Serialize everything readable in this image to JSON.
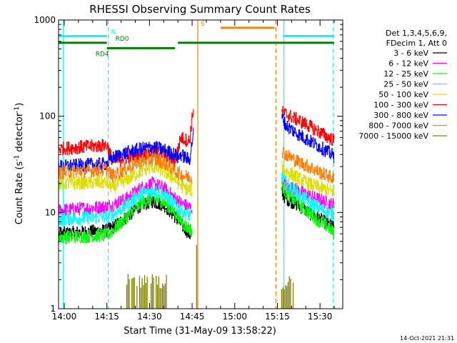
{
  "chart_data": {
    "type": "line",
    "title": "RHESSI Observing Summary Count Rates",
    "xlabel": "Start Time (31-May-09 13:58:22)",
    "ylabel_parts": [
      "Count Rate (s",
      "-1",
      " detector",
      "-1",
      ")"
    ],
    "x_unit": "minutes",
    "xlim": [
      -2,
      98
    ],
    "ylim": [
      1,
      1000
    ],
    "y_scale": "log",
    "x_ticks": [
      {
        "t": 0,
        "label": "14:00"
      },
      {
        "t": 15,
        "label": "14:15"
      },
      {
        "t": 30,
        "label": "14:30"
      },
      {
        "t": 45,
        "label": "14:45"
      },
      {
        "t": 60,
        "label": "15:00"
      },
      {
        "t": 75,
        "label": "15:15"
      },
      {
        "t": 90,
        "label": "15:30"
      }
    ],
    "y_ticks": [
      {
        "v": 1,
        "label": "1"
      },
      {
        "v": 10,
        "label": "10"
      },
      {
        "v": 100,
        "label": "100"
      },
      {
        "v": 1000,
        "label": "1000"
      }
    ],
    "legend": {
      "placement": "right",
      "header": [
        "Det 1,3,4,5,6,9,",
        "FDecim 1, Att 0"
      ]
    },
    "series": [
      {
        "name": "3 - 6 keV",
        "color": "#000000",
        "segments": [
          {
            "x": [
              -2,
              15,
              17,
              22,
              27,
              31,
              35,
              39,
              42,
              45
            ],
            "y": [
              6,
              6.5,
              7,
              9,
              12,
              13,
              12,
              9,
              7,
              5.5
            ]
          },
          {
            "x": [
              76.5,
              78,
              82,
              86,
              90,
              93,
              95
            ],
            "y": [
              16,
              14,
              12,
              10,
              8.5,
              7.5,
              7
            ]
          }
        ]
      },
      {
        "name": "6 - 12 keV",
        "color": "#ff00ff",
        "segments": [
          {
            "x": [
              -2,
              15,
              17,
              22,
              27,
              31,
              35,
              39,
              42,
              45
            ],
            "y": [
              10.5,
              11.5,
              12,
              14,
              18,
              20,
              18,
              14,
              12,
              11
            ]
          },
          {
            "x": [
              76.5,
              78,
              82,
              86,
              90,
              93,
              95
            ],
            "y": [
              22,
              19,
              17,
              15,
              13.5,
              12.5,
              12
            ]
          }
        ]
      },
      {
        "name": "12 - 25 keV",
        "color": "#00ff00",
        "segments": [
          {
            "x": [
              -2,
              15,
              17,
              22,
              27,
              31,
              35,
              39,
              42,
              45
            ],
            "y": [
              5.5,
              5.8,
              6.5,
              9,
              12.5,
              14,
              13,
              10,
              7.5,
              6.5
            ]
          },
          {
            "x": [
              76.5,
              78,
              82,
              86,
              90,
              93,
              95
            ],
            "y": [
              20,
              16,
              12.5,
              10,
              8,
              7,
              6
            ]
          }
        ]
      },
      {
        "name": "25 - 50 keV",
        "color": "#00ffff",
        "segments": [
          {
            "x": [
              -2,
              15,
              17,
              22,
              27,
              31,
              35,
              39,
              42,
              45
            ],
            "y": [
              8.5,
              9,
              9.5,
              12,
              15.5,
              17,
              15.5,
              12,
              10,
              9
            ]
          },
          {
            "x": [
              76.5,
              78,
              82,
              86,
              90,
              93,
              95
            ],
            "y": [
              25,
              20,
              16,
              13,
              11,
              10,
              9.5
            ]
          }
        ]
      },
      {
        "name": "50 - 100 keV",
        "color": "#dddd00",
        "segments": [
          {
            "x": [
              -2,
              15,
              17,
              22,
              27,
              31,
              35,
              39,
              42,
              45
            ],
            "y": [
              20,
              20.5,
              18,
              22,
              27,
              30,
              27,
              22,
              18,
              17
            ]
          },
          {
            "x": [
              76.5,
              78,
              82,
              86,
              90,
              93,
              95
            ],
            "y": [
              30,
              27,
              23,
              20,
              18,
              17,
              16
            ]
          }
        ]
      },
      {
        "name": "100 - 300 keV",
        "color": "#ff0000",
        "segments": [
          {
            "x": [
              -2,
              15,
              17,
              22,
              27,
              31,
              35,
              39,
              40,
              41,
              44,
              45.5
            ],
            "y": [
              46,
              50,
              34,
              37,
              40,
              42,
              40,
              34,
              46,
              60,
              55,
              130
            ]
          },
          {
            "x": [
              76.5,
              78,
              82,
              86,
              90,
              93,
              95
            ],
            "y": [
              110,
              105,
              92,
              80,
              68,
              60,
              56
            ]
          }
        ]
      },
      {
        "name": "300 - 800 keV",
        "color": "#0000ff",
        "segments": [
          {
            "x": [
              -2,
              15,
              17,
              22,
              27,
              31,
              35,
              39,
              40,
              41,
              44,
              45.5
            ],
            "y": [
              30,
              32,
              37,
              42,
              46,
              48,
              45,
              40,
              37,
              40,
              35,
              70
            ]
          },
          {
            "x": [
              76.5,
              78,
              82,
              86,
              90,
              93,
              95
            ],
            "y": [
              100,
              80,
              66,
              56,
              48,
              42,
              38
            ]
          }
        ]
      },
      {
        "name": "800 - 7000 keV",
        "color": "#ff8000",
        "segments": [
          {
            "x": [
              -2,
              15,
              17,
              22,
              27,
              31,
              35,
              39,
              42,
              45
            ],
            "y": [
              26,
              28,
              24,
              29,
              34,
              36,
              33,
              27,
              24,
              23
            ]
          },
          {
            "x": [
              76.5,
              78,
              82,
              86,
              90,
              93,
              95
            ],
            "y": [
              44,
              40,
              34,
              30,
              26,
              24,
              22
            ]
          }
        ]
      },
      {
        "name": "7000 - 15000 keV",
        "color": "#808000",
        "segments": []
      }
    ],
    "attenuator_spikes": {
      "color": "#808000",
      "bands": [
        [
          22,
          36
        ],
        [
          76.5,
          81
        ]
      ],
      "level_top": 2.3
    },
    "status_bars": [
      {
        "label": "N",
        "color": "#00ffff",
        "x_start": -2,
        "x_end": 15,
        "y": 680,
        "label_x": 16.5
      },
      {
        "label": "",
        "color": "#00ffff",
        "x_start": 77,
        "x_end": 95,
        "y": 680
      },
      {
        "label": "RD0",
        "color": "#007f00",
        "x_start": -2,
        "x_end": 15,
        "y": 580,
        "label_x": 18
      },
      {
        "label": "",
        "color": "#007f00",
        "x_start": 40,
        "x_end": 95,
        "y": 580
      },
      {
        "label": "RD4",
        "color": "#007f00",
        "x_start": 15,
        "x_end": 39,
        "y": 510,
        "label_x": 11,
        "label_below": true
      },
      {
        "label": "S",
        "color": "#ff8000",
        "x_start": 55,
        "x_end": 74,
        "y": 830,
        "label_x": 48
      }
    ],
    "vlines": [
      {
        "x": -0.3,
        "color": "#00ffff",
        "dashed": false
      },
      {
        "x": 15.5,
        "color": "#00ffff",
        "dashed": true
      },
      {
        "x": 77.3,
        "color": "#00ffff",
        "dashed": false
      },
      {
        "x": 94.7,
        "color": "#00ffff",
        "dashed": true
      },
      {
        "x": 47,
        "color": "#ff8000",
        "dashed": false
      },
      {
        "x": 74.5,
        "color": "#ff8000",
        "dashed": true
      }
    ],
    "timestamp": "14-Oct-2021 21:31"
  }
}
